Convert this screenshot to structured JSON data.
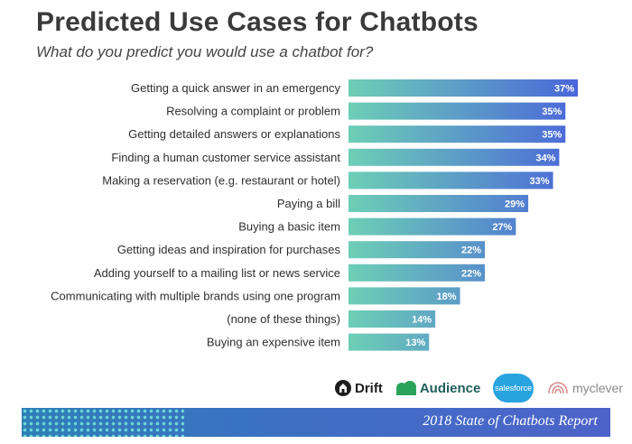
{
  "chart_data": {
    "type": "bar",
    "orientation": "horizontal",
    "title": "Predicted Use Cases for Chatbots",
    "subtitle": "What do you predict you would use a chatbot for?",
    "categories": [
      "Getting a quick answer in an emergency",
      "Resolving a complaint or problem",
      "Getting detailed answers or explanations",
      "Finding a human customer service assistant",
      "Making a reservation (e.g. restaurant or hotel)",
      "Paying a bill",
      "Buying a basic item",
      "Getting ideas and inspiration for purchases",
      "Adding yourself to a mailing list or news service",
      "Communicating with multiple brands using one program",
      "(none of these things)",
      "Buying an expensive item"
    ],
    "values": [
      37,
      35,
      35,
      34,
      33,
      29,
      27,
      22,
      22,
      18,
      14,
      13
    ],
    "value_labels": [
      "37%",
      "35%",
      "35%",
      "34%",
      "33%",
      "29%",
      "27%",
      "22%",
      "22%",
      "18%",
      "14%",
      "13%"
    ],
    "xlim": [
      0,
      37
    ],
    "grid": false,
    "colors": {
      "bar_start": "#6dcfb6",
      "bar_end": "#4a66d9"
    }
  },
  "logos": {
    "drift": "Drift",
    "audience": "Audience",
    "salesforce": "salesforce",
    "myclever": "myclever"
  },
  "footer": {
    "text": "2018 State of Chatbots Report"
  }
}
